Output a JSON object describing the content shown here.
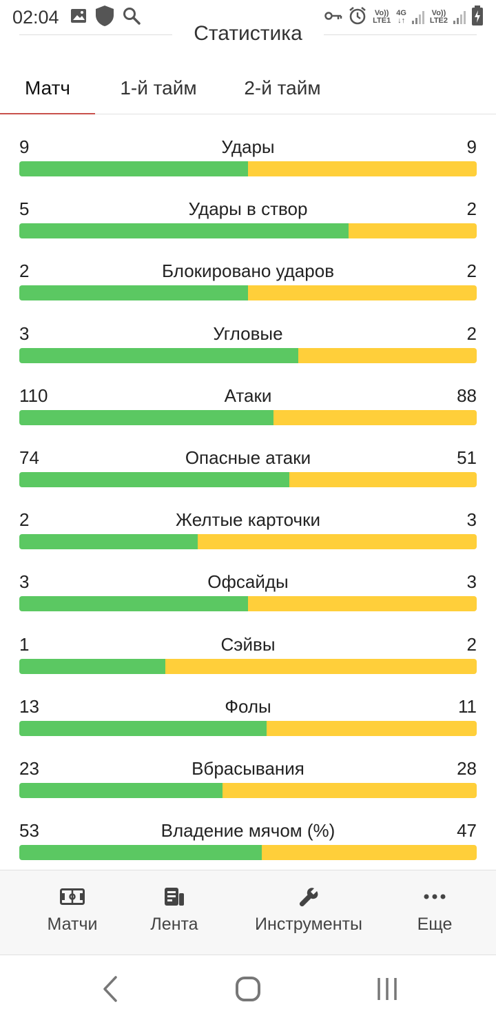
{
  "status_bar": {
    "time": "02:04",
    "left_icons": [
      "image-icon",
      "shield-icon",
      "search-icon"
    ],
    "right_icons": [
      "vpn-key-icon",
      "alarm-icon",
      "volte-lte1-icon",
      "network-4g-icon",
      "signal-icon",
      "volte-lte2-icon",
      "signal-icon",
      "battery-charging-icon"
    ],
    "volte1_top": "Vo))",
    "volte1_bottom": "LTE1",
    "net_top": "4G",
    "net_bottom": "↓↑",
    "volte2_top": "Vo))",
    "volte2_bottom": "LTE2"
  },
  "header": {
    "title": "Статистика"
  },
  "tabs": [
    {
      "label": "Матч",
      "active": true
    },
    {
      "label": "1-й тайм",
      "active": false
    },
    {
      "label": "2-й тайм",
      "active": false
    }
  ],
  "colors": {
    "home_bar": "#5bc862",
    "away_bar": "#ffcf3a",
    "tab_indicator": "#c8504b"
  },
  "stats": [
    {
      "label": "Удары",
      "home": "9",
      "away": "9",
      "home_share": 0.5
    },
    {
      "label": "Удары в створ",
      "home": "5",
      "away": "2",
      "home_share": 0.72
    },
    {
      "label": "Блокировано ударов",
      "home": "2",
      "away": "2",
      "home_share": 0.5
    },
    {
      "label": "Угловые",
      "home": "3",
      "away": "2",
      "home_share": 0.61
    },
    {
      "label": "Атаки",
      "home": "110",
      "away": "88",
      "home_share": 0.555
    },
    {
      "label": "Опасные атаки",
      "home": "74",
      "away": "51",
      "home_share": 0.59
    },
    {
      "label": "Желтые карточки",
      "home": "2",
      "away": "3",
      "home_share": 0.39
    },
    {
      "label": "Офсайды",
      "home": "3",
      "away": "3",
      "home_share": 0.5
    },
    {
      "label": "Сэйвы",
      "home": "1",
      "away": "2",
      "home_share": 0.32
    },
    {
      "label": "Фолы",
      "home": "13",
      "away": "11",
      "home_share": 0.54
    },
    {
      "label": "Вбрасывания",
      "home": "23",
      "away": "28",
      "home_share": 0.445
    },
    {
      "label": "Владение мячом (%)",
      "home": "53",
      "away": "47",
      "home_share": 0.53
    }
  ],
  "bottom_nav": [
    {
      "label": "Матчи",
      "icon": "soccer-field-icon"
    },
    {
      "label": "Лента",
      "icon": "newsfeed-icon"
    },
    {
      "label": "Инструменты",
      "icon": "wrench-icon"
    },
    {
      "label": "Еще",
      "icon": "more-dots-icon"
    }
  ],
  "system_nav": [
    "back-icon",
    "home-icon",
    "recents-icon"
  ]
}
